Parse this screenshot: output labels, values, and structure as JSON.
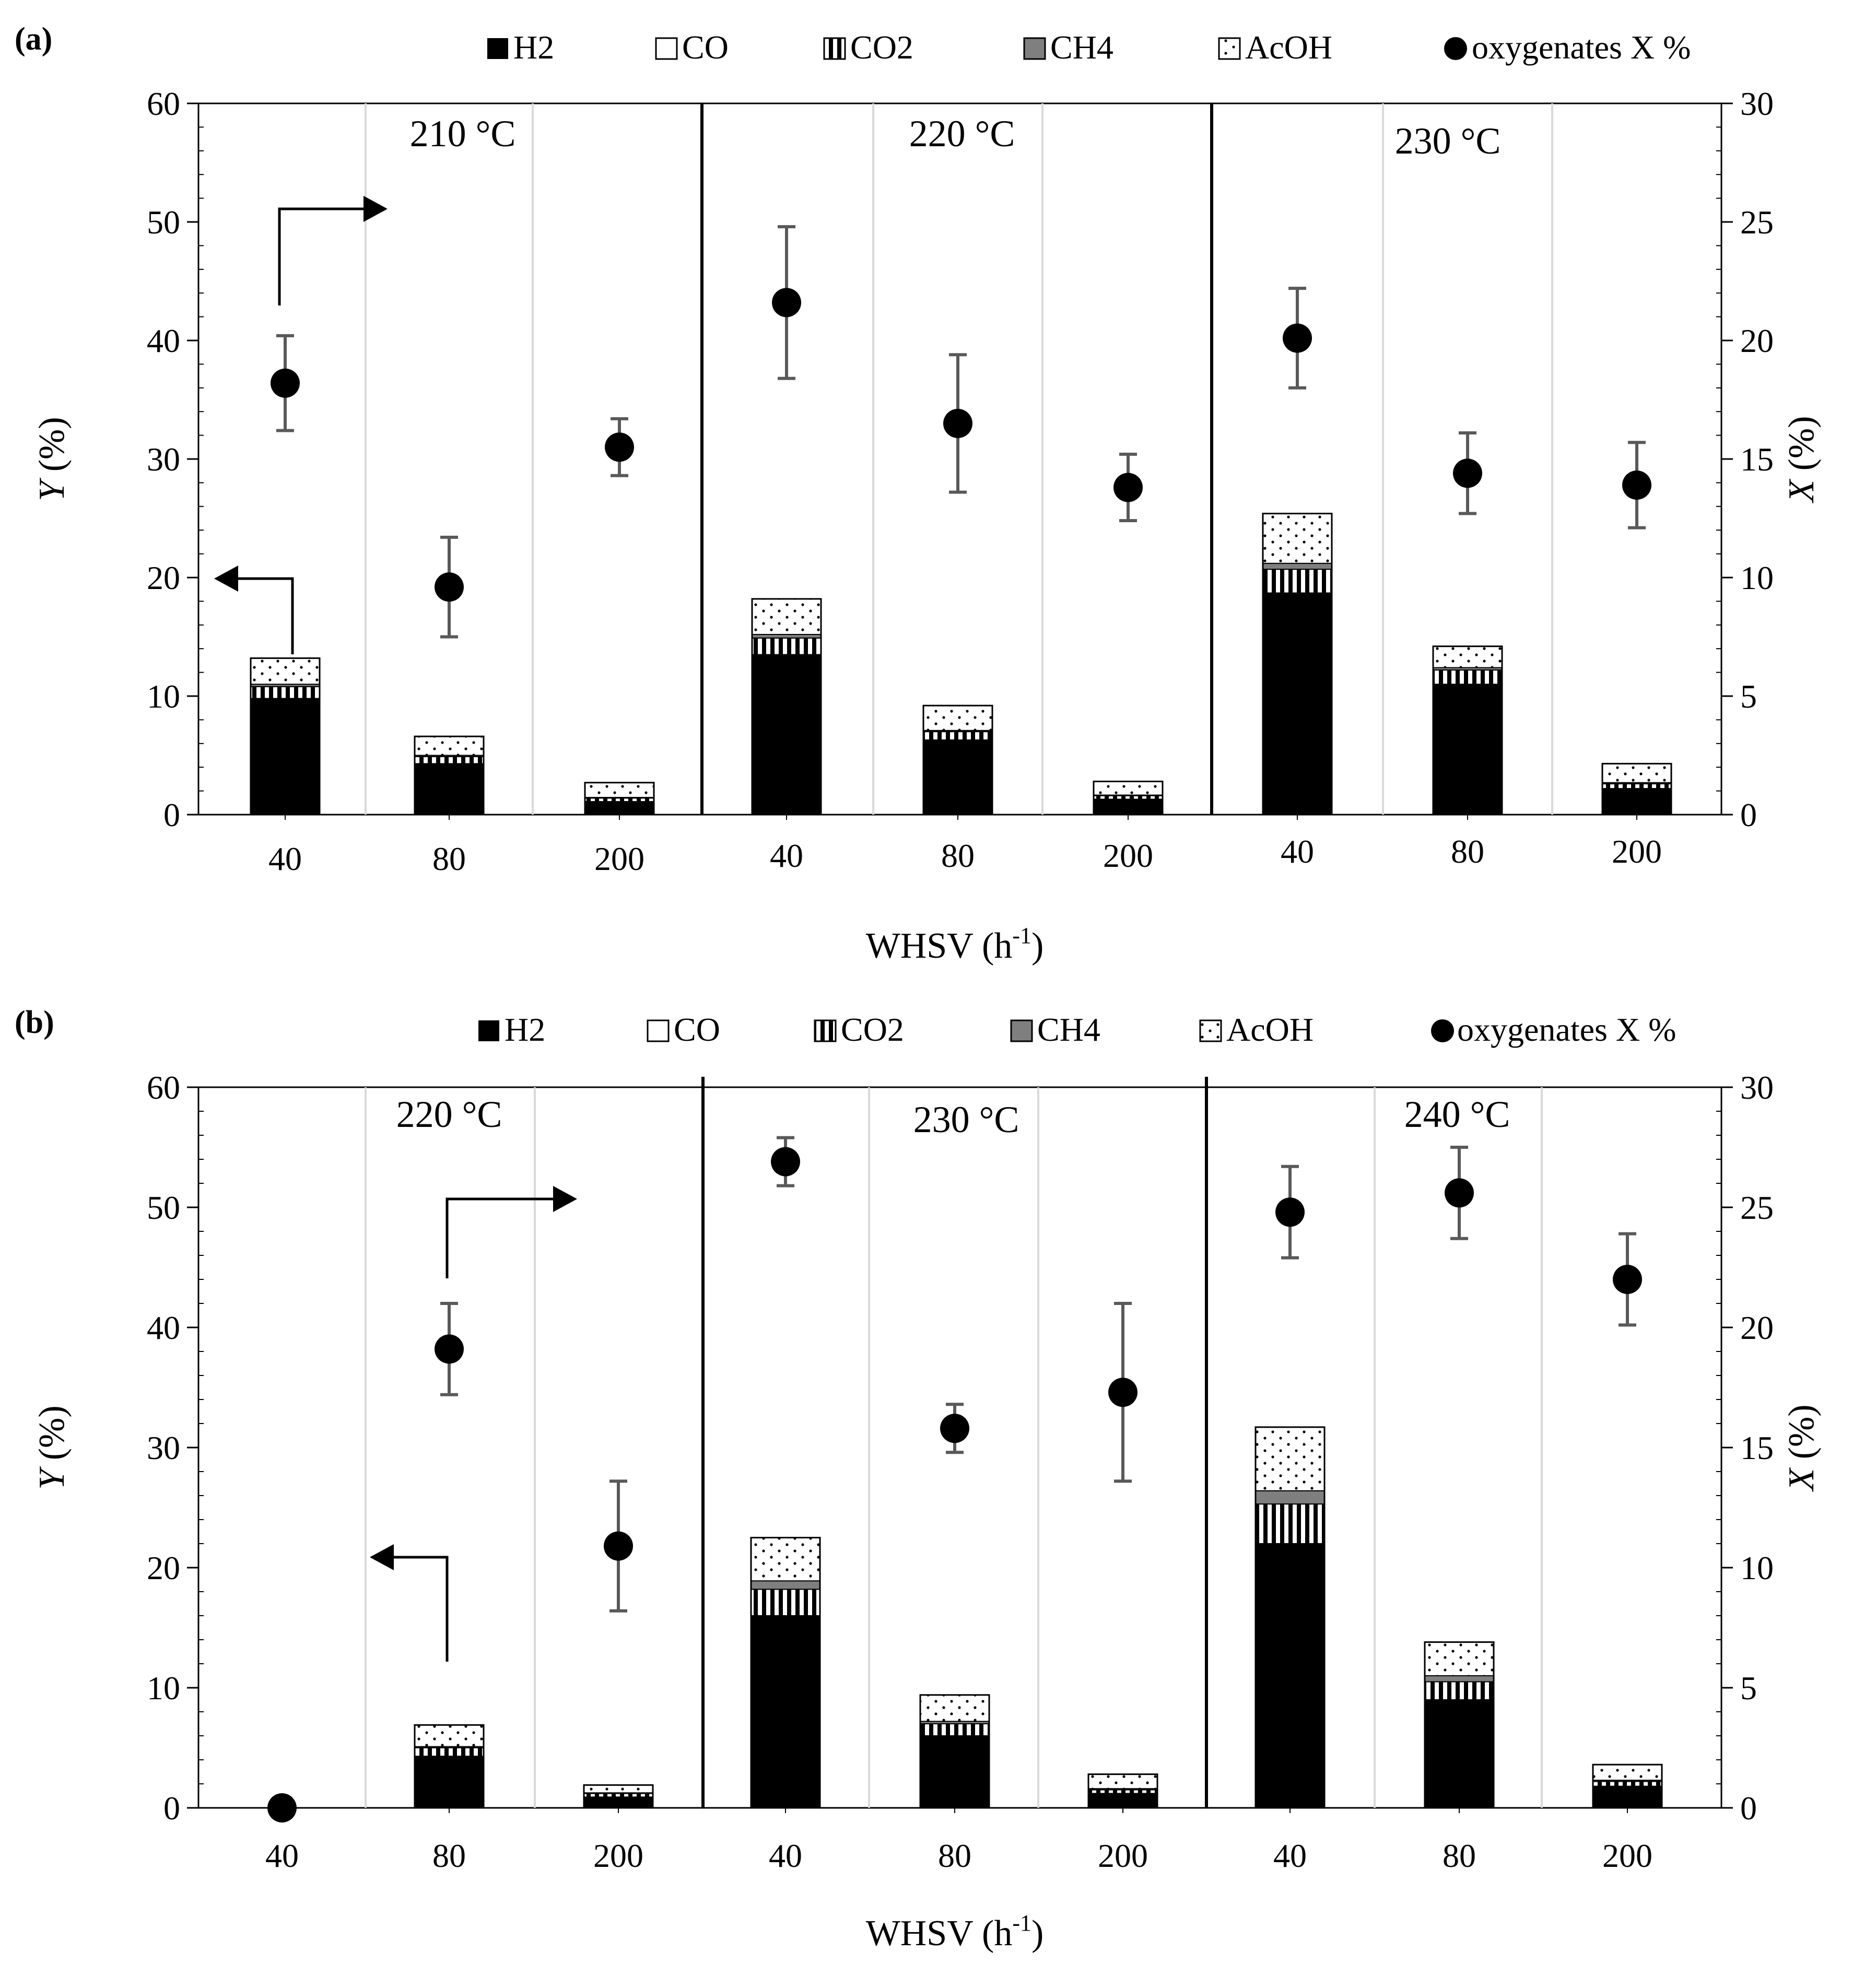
{
  "chart_data": [
    {
      "panel_label": "(a)",
      "type": "bar",
      "stacked": true,
      "legend": {
        "placement": "top",
        "items": [
          "H2",
          "CO",
          "CO2",
          "CH4",
          "AcOH",
          "oxygenates X %"
        ]
      },
      "left_axis": {
        "label_italic": "Y",
        "label_rest": " (%)",
        "ylim": [
          0,
          60
        ],
        "ticks": [
          "0",
          "10",
          "20",
          "30",
          "40",
          "50",
          "60"
        ]
      },
      "right_axis": {
        "label_italic": "X",
        "label_rest": " (%)",
        "ylim": [
          0,
          30
        ],
        "ticks": [
          "0",
          "5",
          "10",
          "15",
          "20",
          "25",
          "30"
        ]
      },
      "xlabel_main": "WHSV (h",
      "xlabel_sup": "-1",
      "xlabel_close": ")",
      "groups": [
        {
          "temperature": "210 °C",
          "categories": [
            "40",
            "80",
            "200"
          ],
          "H2": [
            9.8,
            4.3,
            1.1
          ],
          "CO": [
            0,
            0,
            0
          ],
          "CO2": [
            1.0,
            0.6,
            0.3
          ],
          "CH4": [
            0.2,
            0.1,
            0.05
          ],
          "AcOH": [
            2.2,
            1.6,
            1.25
          ],
          "X": [
            18.2,
            9.6,
            15.5
          ],
          "X_err": [
            2.0,
            2.1,
            1.2
          ]
        },
        {
          "temperature": "220 °C",
          "categories": [
            "40",
            "80",
            "200"
          ],
          "H2": [
            13.5,
            6.3,
            1.3
          ],
          "CO": [
            0,
            0,
            0
          ],
          "CO2": [
            1.4,
            0.7,
            0.3
          ],
          "CH4": [
            0.3,
            0.1,
            0.05
          ],
          "AcOH": [
            3.0,
            2.1,
            1.15
          ],
          "X": [
            21.6,
            16.5,
            13.8
          ],
          "X_err": [
            3.2,
            2.9,
            1.4
          ]
        },
        {
          "temperature": "230 °C",
          "categories": [
            "40",
            "80",
            "200"
          ],
          "H2": [
            18.7,
            11.0,
            2.2
          ],
          "CO": [
            0,
            0,
            0
          ],
          "CO2": [
            2.0,
            1.2,
            0.4
          ],
          "CH4": [
            0.5,
            0.2,
            0.1
          ],
          "AcOH": [
            4.2,
            1.8,
            1.6
          ],
          "X": [
            20.1,
            14.4,
            13.9
          ],
          "X_err": [
            2.1,
            1.7,
            1.8
          ]
        }
      ]
    },
    {
      "panel_label": "(b)",
      "type": "bar",
      "stacked": true,
      "legend": {
        "placement": "top",
        "items": [
          "H2",
          "CO",
          "CO2",
          "CH4",
          "AcOH",
          "oxygenates X %"
        ]
      },
      "left_axis": {
        "label_italic": "Y",
        "label_rest": " (%)",
        "ylim": [
          0,
          60
        ],
        "ticks": [
          "0",
          "10",
          "20",
          "30",
          "40",
          "50",
          "60"
        ]
      },
      "right_axis": {
        "label_italic": "X",
        "label_rest": " (%)",
        "ylim": [
          0,
          30
        ],
        "ticks": [
          "0",
          "5",
          "10",
          "15",
          "20",
          "25",
          "30"
        ]
      },
      "xlabel_main": "WHSV (h",
      "xlabel_sup": "-1",
      "xlabel_close": ")",
      "groups": [
        {
          "temperature": "220 °C",
          "categories": [
            "40",
            "80",
            "200"
          ],
          "H2": [
            0,
            4.3,
            0.9
          ],
          "CO": [
            0,
            0,
            0
          ],
          "CO2": [
            0,
            0.7,
            0.3
          ],
          "CH4": [
            0,
            0.1,
            0.05
          ],
          "AcOH": [
            0,
            1.8,
            0.65
          ],
          "X": [
            0.0,
            19.1,
            10.9
          ],
          "X_err": [
            0,
            1.9,
            2.7
          ]
        },
        {
          "temperature": "230 °C",
          "categories": [
            "40",
            "80",
            "200"
          ],
          "H2": [
            16.0,
            6.0,
            1.2
          ],
          "CO": [
            0,
            0,
            0
          ],
          "CO2": [
            2.2,
            1.0,
            0.3
          ],
          "CH4": [
            0.7,
            0.2,
            0.1
          ],
          "AcOH": [
            3.6,
            2.2,
            1.2
          ],
          "X": [
            26.9,
            15.8,
            17.3
          ],
          "X_err": [
            1.0,
            1.0,
            3.7
          ]
        },
        {
          "temperature": "240 °C",
          "categories": [
            "40",
            "80",
            "200"
          ],
          "H2": [
            22.0,
            9.0,
            1.8
          ],
          "CO": [
            0,
            0,
            0
          ],
          "CO2": [
            3.3,
            1.5,
            0.4
          ],
          "CH4": [
            1.1,
            0.5,
            0.1
          ],
          "AcOH": [
            5.3,
            2.8,
            1.3
          ],
          "X": [
            24.8,
            25.6,
            22.0
          ],
          "X_err": [
            1.9,
            1.9,
            1.9
          ]
        }
      ]
    }
  ]
}
